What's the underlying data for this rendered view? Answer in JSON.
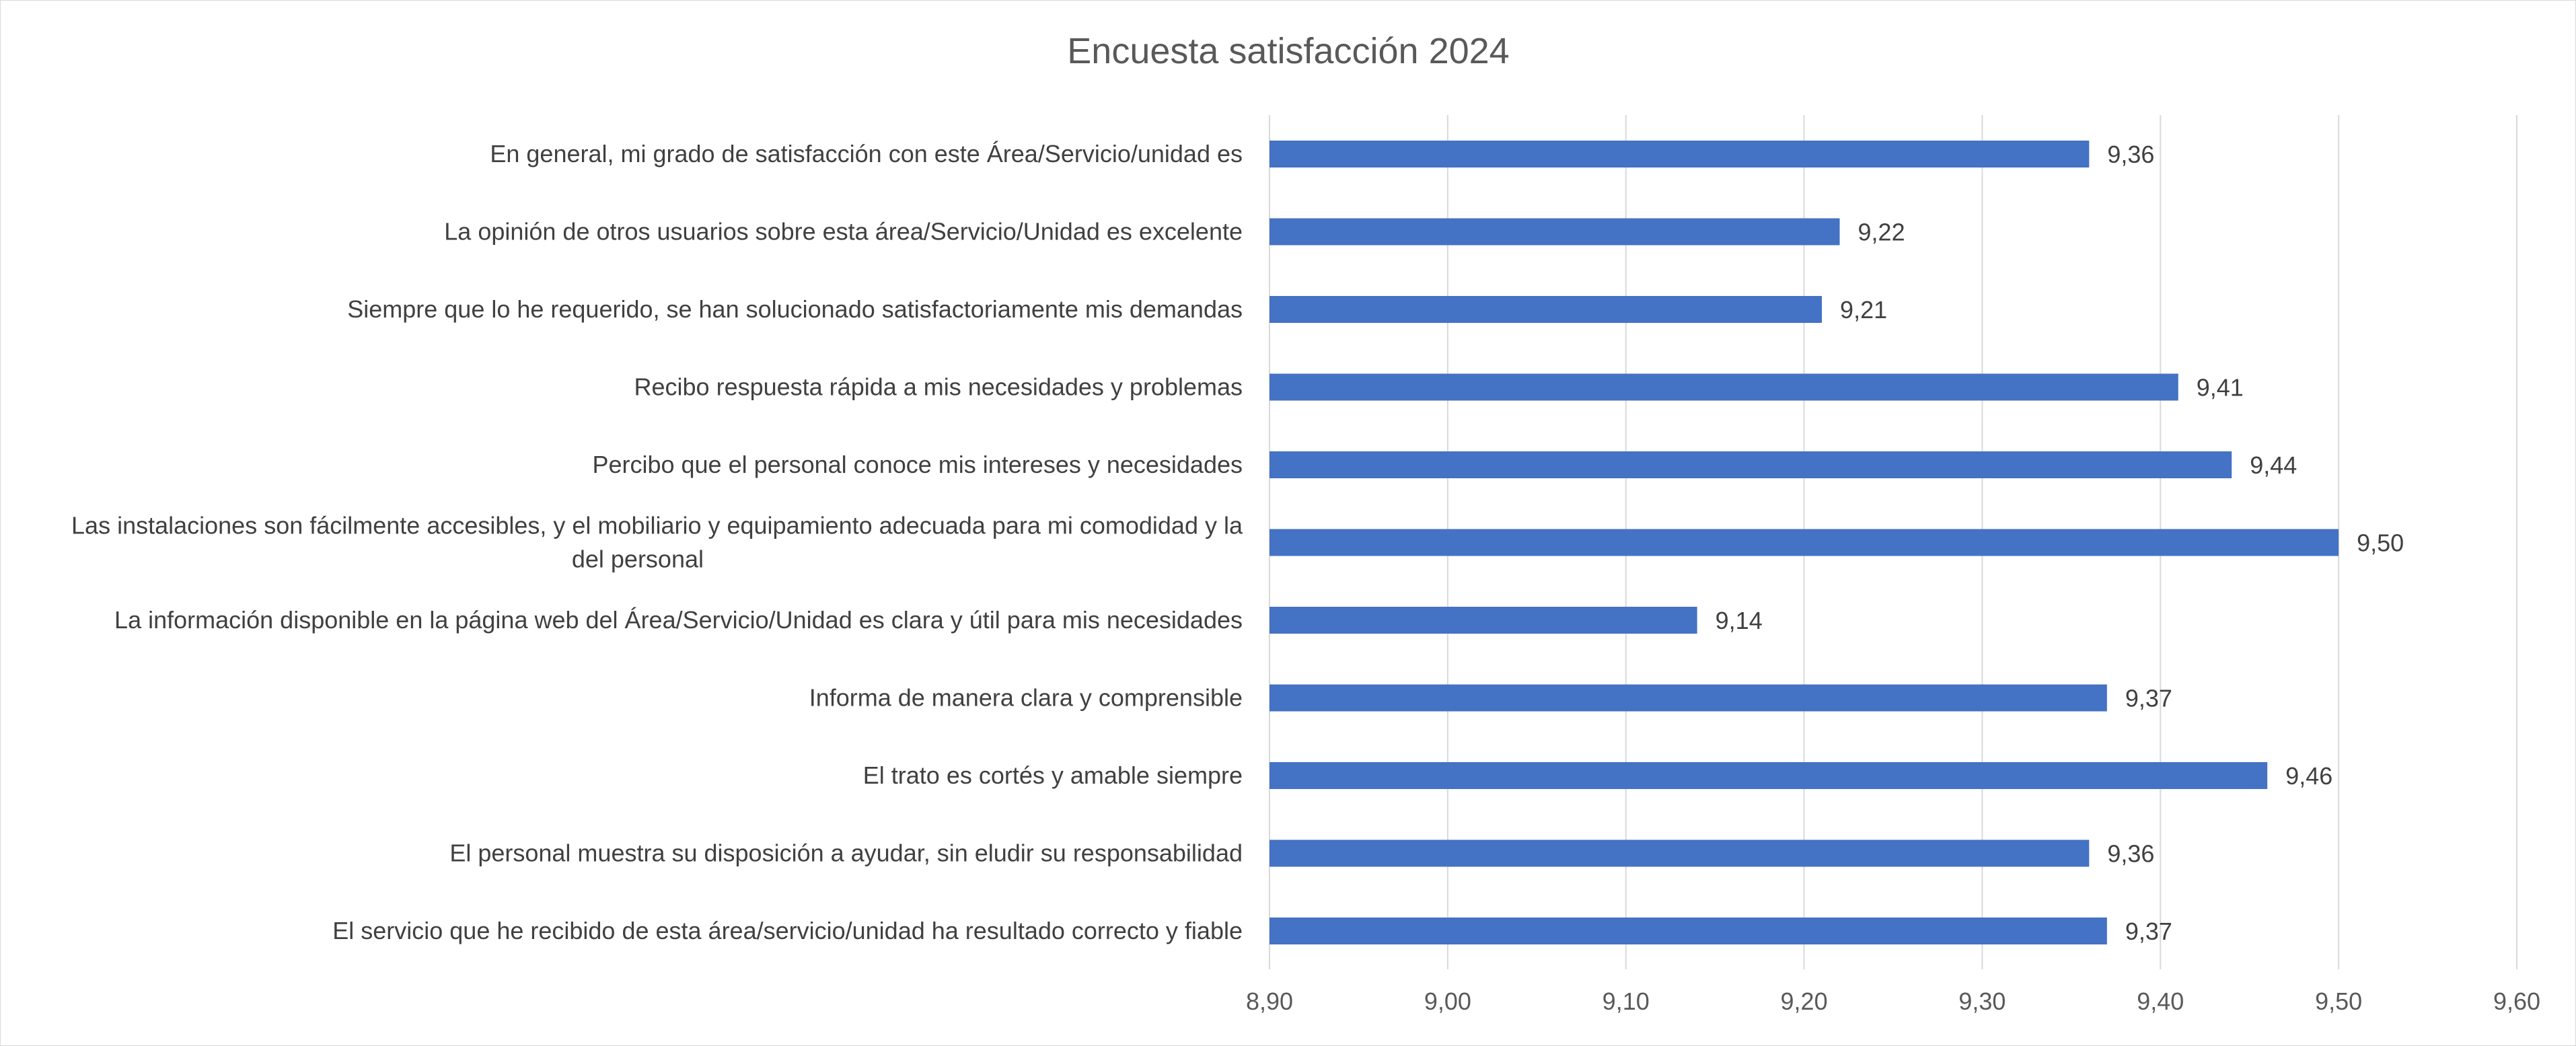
{
  "chart_data": {
    "type": "bar",
    "orientation": "horizontal",
    "title": "Encuesta satisfacción 2024",
    "xlabel": "",
    "ylabel": "",
    "xlim": [
      8.9,
      9.6
    ],
    "x_ticks": [
      8.9,
      9.0,
      9.1,
      9.2,
      9.3,
      9.4,
      9.5,
      9.6
    ],
    "x_tick_labels": [
      "8,90",
      "9,00",
      "9,10",
      "9,20",
      "9,30",
      "9,40",
      "9,50",
      "9,60"
    ],
    "grid": "vertical",
    "legend": "none",
    "bar_color": "#4472C4",
    "categories": [
      "En general, mi grado de satisfacción con este Área/Servicio/unidad es",
      "La opinión de otros usuarios sobre esta área/Servicio/Unidad es excelente",
      "Siempre que lo he requerido, se han solucionado satisfactoriamente mis demandas",
      "Recibo respuesta rápida a mis necesidades y problemas",
      "Percibo que el personal conoce mis intereses y necesidades",
      "Las instalaciones son fácilmente accesibles, y el mobiliario y equipamiento adecuada para mi comodidad y la del personal",
      "La información disponible en la página web del Área/Servicio/Unidad es clara y útil para mis necesidades",
      "Informa de manera clara y comprensible",
      "El trato es cortés y amable siempre",
      "El personal muestra su disposición a ayudar, sin eludir su responsabilidad",
      "El servicio que he recibido de esta área/servicio/unidad ha resultado correcto y fiable"
    ],
    "category_lines": [
      [
        "En general, mi grado de satisfacción con este Área/Servicio/unidad es"
      ],
      [
        "La opinión de otros usuarios sobre esta área/Servicio/Unidad es excelente"
      ],
      [
        "Siempre que lo he requerido, se han solucionado satisfactoriamente mis demandas"
      ],
      [
        "Recibo respuesta rápida a mis necesidades y problemas"
      ],
      [
        "Percibo que el personal conoce mis intereses y necesidades"
      ],
      [
        "Las instalaciones son fácilmente accesibles, y el mobiliario y equipamiento adecuada para mi comodidad y la",
        "del personal"
      ],
      [
        "La información disponible en la página web del Área/Servicio/Unidad es clara y útil para mis necesidades"
      ],
      [
        "Informa de manera clara y comprensible"
      ],
      [
        "El trato es cortés y amable siempre"
      ],
      [
        "El personal muestra su disposición a ayudar, sin eludir su responsabilidad"
      ],
      [
        "El servicio que he recibido de esta área/servicio/unidad ha resultado correcto y fiable"
      ]
    ],
    "values": [
      9.36,
      9.22,
      9.21,
      9.41,
      9.44,
      9.5,
      9.14,
      9.37,
      9.46,
      9.36,
      9.37
    ],
    "value_labels": [
      "9,36",
      "9,22",
      "9,21",
      "9,41",
      "9,44",
      "9,50",
      "9,14",
      "9,37",
      "9,46",
      "9,36",
      "9,37"
    ]
  }
}
